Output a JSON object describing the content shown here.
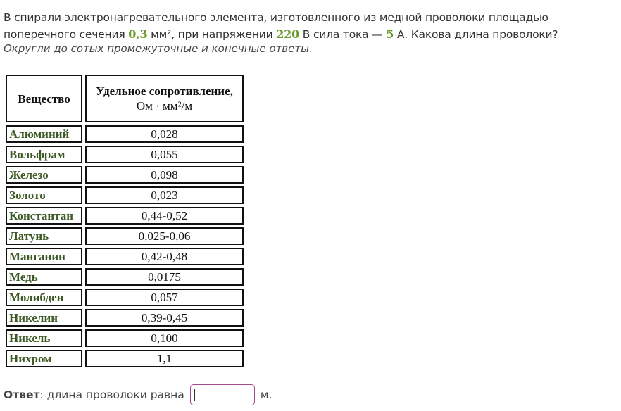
{
  "question": {
    "part1": "В спирали электронагревательного элемента, изготовленного из медной проволоки площадью поперечного сечения ",
    "area": "0,3",
    "part2": " мм², при напряжении ",
    "voltage": "220",
    "part3": " В сила тока — ",
    "current": "5",
    "part4": " А. Какова длина проволоки?",
    "hint": "Округли до сотых промежуточные и конечные ответы."
  },
  "table": {
    "header_substance": "Вещество",
    "header_resistivity_bold": "Удельное сопротивление,",
    "header_resistivity_unit": "Ом · мм²/м",
    "rows": [
      {
        "name": "Алюминий",
        "value": "0,028"
      },
      {
        "name": "Вольфрам",
        "value": "0,055"
      },
      {
        "name": "Железо",
        "value": "0,098"
      },
      {
        "name": "Золото",
        "value": "0,023"
      },
      {
        "name": "Константан",
        "value": "0,44-0,52"
      },
      {
        "name": "Латунь",
        "value": "0,025-0,06"
      },
      {
        "name": "Манганин",
        "value": "0,42-0,48"
      },
      {
        "name": "Медь",
        "value": "0,0175"
      },
      {
        "name": "Молибден",
        "value": "0,057"
      },
      {
        "name": "Никелин",
        "value": "0,39-0,45"
      },
      {
        "name": "Никель",
        "value": "0,100"
      },
      {
        "name": "Нихром",
        "value": "1,1"
      }
    ]
  },
  "answer": {
    "label": "Ответ",
    "text": ": длина проволоки равна",
    "value": "",
    "unit": "м."
  }
}
